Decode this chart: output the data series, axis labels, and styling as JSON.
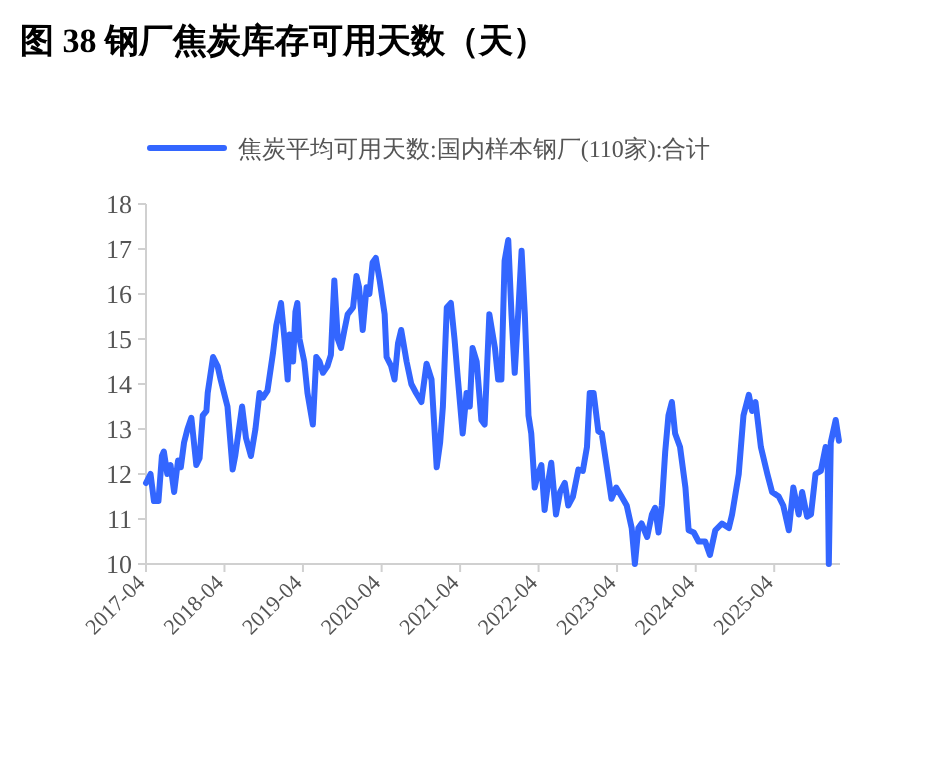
{
  "chart_data": {
    "type": "line",
    "title": "图 38 钢厂焦炭库存可用天数（天）",
    "legend": "top",
    "x": [
      "2017-04-01",
      "2017-04-22",
      "2017-05-08",
      "2017-05-29",
      "2017-06-14",
      "2017-06-23",
      "2017-07-09",
      "2017-07-24",
      "2017-08-10",
      "2017-08-28",
      "2017-09-10",
      "2017-09-25",
      "2017-10-11",
      "2017-10-29",
      "2017-11-21",
      "2017-12-06",
      "2017-12-21",
      "2018-01-07",
      "2018-01-13",
      "2018-02-07",
      "2018-02-28",
      "2018-03-14",
      "2018-04-15",
      "2018-05-09",
      "2018-05-21",
      "2018-06-22",
      "2018-07-10",
      "2018-08-02",
      "2018-08-23",
      "2018-09-11",
      "2018-09-27",
      "2018-10-18",
      "2018-11-13",
      "2018-11-28",
      "2018-12-20",
      "2019-01-05",
      "2019-01-20",
      "2019-01-29",
      "2019-02-14",
      "2019-02-25",
      "2019-03-06",
      "2019-03-16",
      "2019-04-07",
      "2019-04-22",
      "2019-05-17",
      "2019-06-02",
      "2019-06-17",
      "2019-07-03",
      "2019-07-24",
      "2019-08-09",
      "2019-08-25",
      "2019-09-10",
      "2019-09-25",
      "2019-10-11",
      "2019-10-26",
      "2019-11-20",
      "2019-12-06",
      "2019-12-18",
      "2020-01-04",
      "2020-01-22",
      "2020-02-04",
      "2020-02-19",
      "2020-03-05",
      "2020-03-23",
      "2020-04-15",
      "2020-04-24",
      "2020-05-15",
      "2020-05-31",
      "2020-06-16",
      "2020-07-01",
      "2020-07-26",
      "2020-08-17",
      "2020-09-08",
      "2020-10-03",
      "2020-10-27",
      "2020-11-19",
      "2020-12-04",
      "2020-12-13",
      "2020-12-29",
      "2021-01-11",
      "2021-01-29",
      "2021-02-17",
      "2021-03-06",
      "2021-03-21",
      "2021-04-13",
      "2021-05-01",
      "2021-05-16",
      "2021-05-29",
      "2021-06-17",
      "2021-07-09",
      "2021-07-24",
      "2021-08-15",
      "2021-09-10",
      "2021-09-25",
      "2021-10-10",
      "2021-10-25",
      "2021-11-11",
      "2021-11-26",
      "2021-12-11",
      "2021-12-27",
      "2022-01-12",
      "2022-01-27",
      "2022-02-13",
      "2022-02-26",
      "2022-03-14",
      "2022-03-29",
      "2022-04-14",
      "2022-04-29",
      "2022-05-15",
      "2022-05-30",
      "2022-06-21",
      "2022-07-10",
      "2022-08-01",
      "2022-08-17",
      "2022-09-08",
      "2022-10-03",
      "2022-10-24",
      "2022-11-12",
      "2022-11-25",
      "2022-12-13",
      "2023-01-04",
      "2023-01-20",
      "2023-02-14",
      "2023-03-06",
      "2023-03-28",
      "2023-04-22",
      "2023-05-16",
      "2023-06-08",
      "2023-06-23",
      "2023-07-09",
      "2023-07-24",
      "2023-08-19",
      "2023-09-10",
      "2023-09-25",
      "2023-10-11",
      "2023-10-26",
      "2023-11-11",
      "2023-11-26",
      "2023-12-12",
      "2023-12-27",
      "2024-01-19",
      "2024-02-13",
      "2024-02-28",
      "2024-03-23",
      "2024-04-14",
      "2024-05-15",
      "2024-06-06",
      "2024-07-01",
      "2024-08-01",
      "2024-09-02",
      "2024-09-17",
      "2024-10-18",
      "2024-11-09",
      "2024-12-04",
      "2024-12-19",
      "2025-01-04",
      "2025-01-29",
      "2025-02-28",
      "2025-03-22",
      "2025-04-22",
      "2025-05-13",
      "2025-06-08",
      "2025-06-29",
      "2025-07-24",
      "2025-08-09",
      "2025-09-01",
      "2025-09-19",
      "2025-10-10",
      "2025-11-04",
      "2025-11-26",
      "2025-12-05",
      "2025-12-11",
      "2025-12-20",
      "2026-01-12",
      "2026-01-27"
    ],
    "series": [
      {
        "name": "焦炭平均可用天数:国内样本钢厂(110家):合计",
        "color": "#3366ff",
        "values": [
          11.8,
          12.0,
          11.4,
          11.4,
          12.4,
          12.5,
          12.0,
          12.2,
          11.6,
          12.3,
          12.15,
          12.7,
          13.0,
          13.25,
          12.2,
          12.35,
          13.3,
          13.4,
          13.8,
          14.6,
          14.4,
          14.1,
          13.5,
          12.1,
          12.4,
          13.5,
          12.8,
          12.4,
          13.0,
          13.8,
          13.7,
          13.85,
          14.7,
          15.3,
          15.8,
          15.0,
          14.1,
          15.1,
          14.5,
          15.6,
          15.8,
          15.0,
          14.5,
          13.8,
          13.1,
          14.6,
          14.5,
          14.25,
          14.4,
          14.65,
          16.3,
          15.0,
          14.8,
          15.2,
          15.55,
          15.7,
          16.4,
          16.15,
          15.2,
          16.15,
          16.0,
          16.7,
          16.8,
          16.3,
          15.55,
          14.6,
          14.4,
          14.1,
          14.9,
          15.2,
          14.5,
          14.0,
          13.8,
          13.6,
          14.45,
          14.1,
          12.9,
          12.15,
          12.7,
          13.5,
          15.7,
          15.8,
          15.0,
          14.15,
          12.9,
          13.8,
          13.5,
          14.8,
          14.5,
          13.2,
          13.1,
          15.55,
          14.8,
          14.1,
          14.1,
          16.74,
          17.2,
          15.55,
          14.25,
          15.55,
          16.96,
          15.55,
          13.3,
          12.9,
          11.7,
          12.0,
          12.2,
          11.2,
          11.8,
          12.25,
          11.1,
          11.6,
          11.8,
          11.3,
          11.5,
          12.1,
          12.07,
          12.6,
          13.8,
          13.8,
          12.95,
          12.9,
          12.1,
          11.45,
          11.7,
          11.5,
          11.3,
          10.8,
          10.0,
          10.8,
          10.9,
          10.6,
          11.1,
          11.25,
          10.7,
          11.3,
          12.5,
          13.3,
          13.6,
          12.9,
          12.6,
          11.7,
          10.75,
          10.7,
          10.5,
          10.5,
          10.2,
          10.75,
          10.9,
          10.8,
          11.1,
          12.0,
          13.3,
          13.76,
          13.4,
          13.6,
          12.6,
          12.0,
          11.6,
          11.5,
          11.3,
          10.75,
          11.7,
          11.1,
          11.6,
          11.05,
          11.1,
          12.0,
          12.07,
          12.6,
          12.45,
          10.0,
          12.7,
          13.2,
          12.74
        ]
      }
    ],
    "xlim": [
      "2017-04-01",
      "2026-02-01"
    ],
    "xticks": [
      "2017-04",
      "2018-04",
      "2019-04",
      "2020-04",
      "2021-04",
      "2022-04",
      "2023-04",
      "2024-04",
      "2025-04"
    ],
    "ylim": [
      10,
      18
    ],
    "yticks": [
      10,
      11,
      12,
      13,
      14,
      15,
      16,
      17,
      18
    ]
  }
}
